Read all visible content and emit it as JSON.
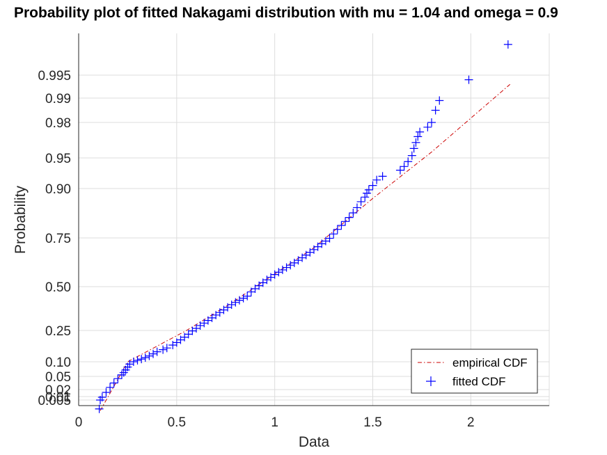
{
  "chart_data": {
    "type": "scatter",
    "title": "Probability plot of fitted Nakagami distribution with mu = 1.04 and omega = 0.9",
    "xlabel": "Data",
    "ylabel": "Probability",
    "xlim": [
      0,
      2.4
    ],
    "x_ticks": [
      0,
      0.5,
      1,
      1.5,
      2
    ],
    "x_tick_labels": [
      "0",
      "0.5",
      "1",
      "1.5",
      "2"
    ],
    "y_ticks": [
      0.005,
      0.01,
      0.02,
      0.05,
      0.1,
      0.25,
      0.5,
      0.75,
      0.9,
      0.95,
      0.98,
      0.99,
      0.995
    ],
    "y_tick_labels": [
      "0.005",
      "0.01",
      "0.02",
      "0.05",
      "0.10",
      "0.25",
      "0.50",
      "0.75",
      "0.90",
      "0.95",
      "0.98",
      "0.99",
      "0.995"
    ],
    "y_scale": "Nakagami probability scale",
    "grid": true,
    "legend_position": "bottom-right",
    "series": [
      {
        "name": "empirical CDF",
        "kind": "line",
        "style": "dash-dot",
        "color": "#cc0000",
        "points": [
          [
            0.11,
            0.002
          ],
          [
            0.25,
            0.1
          ],
          [
            0.55,
            0.25
          ],
          [
            0.77,
            0.4
          ],
          [
            1.0,
            0.565
          ],
          [
            1.2,
            0.7
          ],
          [
            1.5,
            0.87
          ],
          [
            1.8,
            0.955
          ],
          [
            2.2,
            0.993
          ]
        ]
      },
      {
        "name": "fitted CDF",
        "kind": "markers",
        "marker": "plus",
        "color": "#0000ff",
        "points": [
          [
            0.105,
            0.0025
          ],
          [
            0.11,
            0.005
          ],
          [
            0.12,
            0.009
          ],
          [
            0.14,
            0.016
          ],
          [
            0.16,
            0.025
          ],
          [
            0.18,
            0.035
          ],
          [
            0.2,
            0.045
          ],
          [
            0.22,
            0.055
          ],
          [
            0.23,
            0.063
          ],
          [
            0.24,
            0.072
          ],
          [
            0.25,
            0.082
          ],
          [
            0.26,
            0.092
          ],
          [
            0.28,
            0.1
          ],
          [
            0.3,
            0.107
          ],
          [
            0.32,
            0.113
          ],
          [
            0.34,
            0.12
          ],
          [
            0.36,
            0.128
          ],
          [
            0.38,
            0.138
          ],
          [
            0.4,
            0.148
          ],
          [
            0.43,
            0.158
          ],
          [
            0.45,
            0.166
          ],
          [
            0.48,
            0.18
          ],
          [
            0.5,
            0.192
          ],
          [
            0.52,
            0.205
          ],
          [
            0.54,
            0.218
          ],
          [
            0.56,
            0.232
          ],
          [
            0.58,
            0.248
          ],
          [
            0.6,
            0.262
          ],
          [
            0.62,
            0.278
          ],
          [
            0.64,
            0.292
          ],
          [
            0.66,
            0.307
          ],
          [
            0.68,
            0.322
          ],
          [
            0.7,
            0.338
          ],
          [
            0.72,
            0.352
          ],
          [
            0.74,
            0.367
          ],
          [
            0.76,
            0.382
          ],
          [
            0.78,
            0.397
          ],
          [
            0.8,
            0.41
          ],
          [
            0.82,
            0.422
          ],
          [
            0.84,
            0.434
          ],
          [
            0.86,
            0.446
          ],
          [
            0.88,
            0.47
          ],
          [
            0.9,
            0.488
          ],
          [
            0.92,
            0.505
          ],
          [
            0.94,
            0.52
          ],
          [
            0.96,
            0.535
          ],
          [
            0.98,
            0.548
          ],
          [
            1.0,
            0.562
          ],
          [
            1.02,
            0.574
          ],
          [
            1.04,
            0.586
          ],
          [
            1.06,
            0.598
          ],
          [
            1.08,
            0.61
          ],
          [
            1.1,
            0.622
          ],
          [
            1.12,
            0.635
          ],
          [
            1.14,
            0.648
          ],
          [
            1.16,
            0.662
          ],
          [
            1.18,
            0.676
          ],
          [
            1.2,
            0.69
          ],
          [
            1.22,
            0.705
          ],
          [
            1.24,
            0.72
          ],
          [
            1.26,
            0.734
          ],
          [
            1.28,
            0.748
          ],
          [
            1.3,
            0.762
          ],
          [
            1.32,
            0.776
          ],
          [
            1.34,
            0.788
          ],
          [
            1.36,
            0.8
          ],
          [
            1.38,
            0.812
          ],
          [
            1.4,
            0.826
          ],
          [
            1.42,
            0.842
          ],
          [
            1.44,
            0.86
          ],
          [
            1.46,
            0.874
          ],
          [
            1.47,
            0.886
          ],
          [
            1.48,
            0.896
          ],
          [
            1.5,
            0.905
          ],
          [
            1.52,
            0.914
          ],
          [
            1.55,
            0.92
          ],
          [
            1.64,
            0.93
          ],
          [
            1.66,
            0.936
          ],
          [
            1.68,
            0.944
          ],
          [
            1.7,
            0.952
          ],
          [
            1.71,
            0.958
          ],
          [
            1.72,
            0.963
          ],
          [
            1.73,
            0.968
          ],
          [
            1.74,
            0.972
          ],
          [
            1.78,
            0.976
          ],
          [
            1.8,
            0.98
          ],
          [
            1.82,
            0.985
          ],
          [
            1.84,
            0.989
          ],
          [
            1.99,
            0.994
          ],
          [
            2.19,
            0.9975
          ]
        ]
      }
    ]
  }
}
